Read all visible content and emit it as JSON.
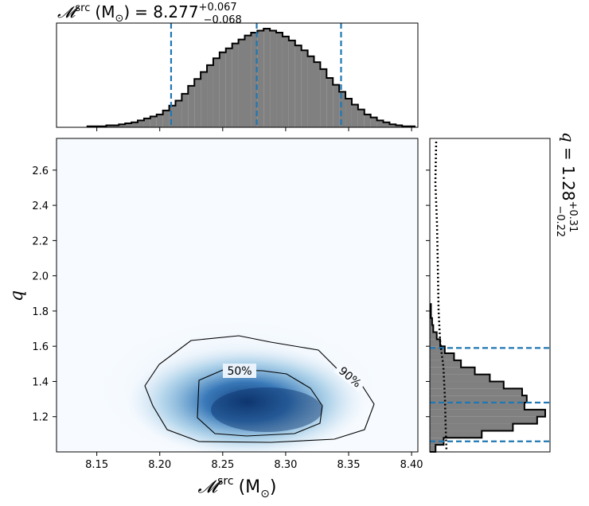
{
  "chart_data": {
    "type": "heatmap",
    "title": {
      "symbol": "𝓜",
      "superscript": "src",
      "unit_open": "(M",
      "unit_sub": "⊙",
      "unit_close": ")",
      "equals": "= 8.277",
      "upper": "+0.067",
      "lower": "−0.068"
    },
    "side_title": {
      "symbol": "q",
      "equals": "= 1.28",
      "upper": "+0.31",
      "lower": "−0.22"
    },
    "xlabel": {
      "symbol": "𝓜",
      "superscript": "src",
      "unit_open": "(M",
      "unit_sub": "⊙",
      "unit_close": ")"
    },
    "ylabel": "q",
    "xlim": [
      8.118,
      8.405
    ],
    "ylim": [
      1.0,
      2.78
    ],
    "x_ticks": [
      "8.15",
      "8.20",
      "8.25",
      "8.30",
      "8.35",
      "8.40"
    ],
    "y_ticks": [
      "1.2",
      "1.4",
      "1.6",
      "1.8",
      "2.0",
      "2.2",
      "2.4",
      "2.6"
    ],
    "contour_labels": [
      "50%",
      "90%"
    ],
    "colormap": [
      "#f7fbff",
      "#c6dbef",
      "#6baed6",
      "#2171b5",
      "#08306b"
    ],
    "x_marginal": {
      "quantiles": [
        8.209,
        8.277,
        8.344
      ],
      "bin_centers": [
        8.145,
        8.15,
        8.155,
        8.16,
        8.165,
        8.17,
        8.175,
        8.18,
        8.185,
        8.19,
        8.195,
        8.2,
        8.205,
        8.21,
        8.215,
        8.22,
        8.225,
        8.23,
        8.235,
        8.24,
        8.245,
        8.25,
        8.255,
        8.26,
        8.265,
        8.27,
        8.275,
        8.28,
        8.285,
        8.29,
        8.295,
        8.3,
        8.305,
        8.31,
        8.315,
        8.32,
        8.325,
        8.33,
        8.335,
        8.34,
        8.345,
        8.35,
        8.355,
        8.36,
        8.365,
        8.37,
        8.375,
        8.38,
        8.385,
        8.39,
        8.395,
        8.4
      ],
      "counts": [
        1,
        1,
        1,
        2,
        2,
        3,
        4,
        5,
        7,
        9,
        11,
        13,
        17,
        22,
        27,
        34,
        42,
        49,
        56,
        63,
        70,
        76,
        80,
        85,
        89,
        93,
        96,
        98,
        100,
        98,
        96,
        92,
        88,
        83,
        78,
        72,
        66,
        59,
        50,
        43,
        36,
        29,
        23,
        18,
        13,
        10,
        7,
        5,
        3,
        2,
        1,
        1
      ]
    },
    "y_marginal": {
      "quantiles": [
        1.06,
        1.28,
        1.59
      ],
      "bin_centers": [
        1.02,
        1.06,
        1.1,
        1.14,
        1.18,
        1.22,
        1.26,
        1.3,
        1.34,
        1.38,
        1.42,
        1.46,
        1.5,
        1.54,
        1.58,
        1.62,
        1.66,
        1.7,
        1.74,
        1.78,
        1.82
      ],
      "counts": [
        5,
        12,
        45,
        72,
        93,
        100,
        82,
        84,
        80,
        64,
        52,
        39,
        27,
        21,
        13,
        9,
        6,
        3,
        2,
        1,
        1
      ]
    }
  }
}
